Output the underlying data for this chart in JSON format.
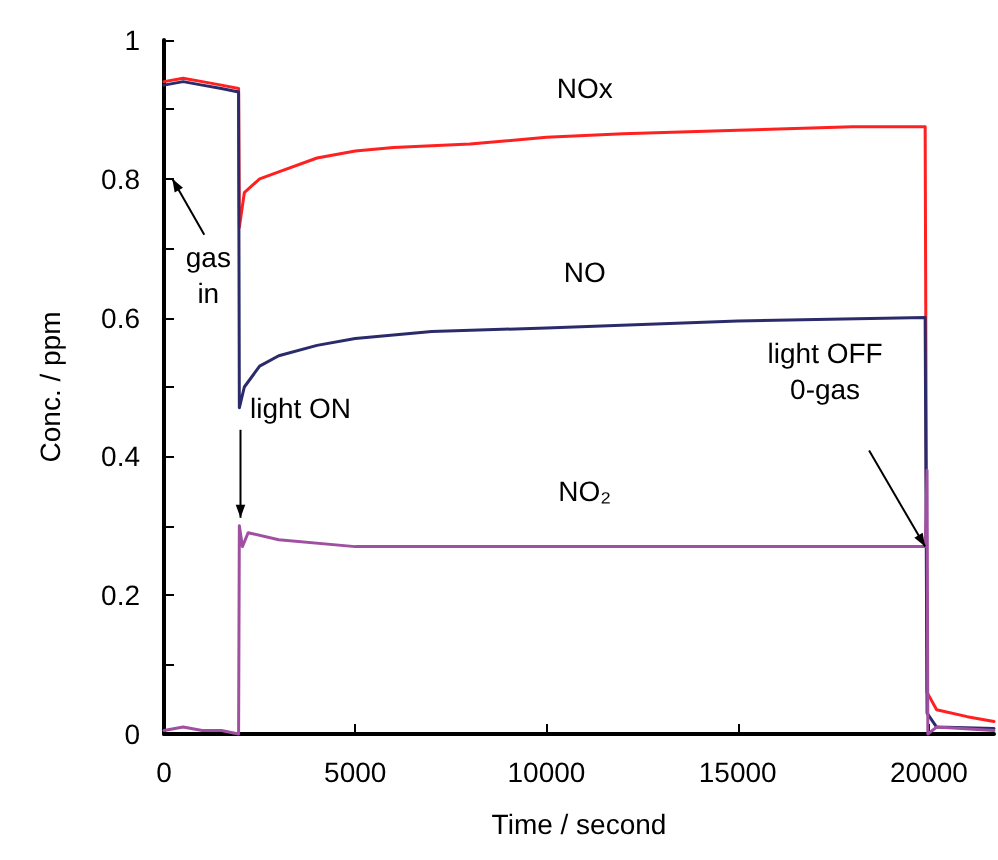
{
  "chart_data": {
    "type": "line",
    "xlabel": "Time / second",
    "ylabel": "Conc. / ppm",
    "xlim": [
      0,
      21700
    ],
    "xticks": [
      0,
      5000,
      10000,
      15000,
      20000
    ],
    "ylim": [
      0,
      1
    ],
    "yticks": [
      0,
      {
        "value": 0.1,
        "label": null
      },
      0.2,
      {
        "value": 0.3,
        "label": null
      },
      0.4,
      {
        "value": 0.5,
        "label": null
      },
      0.6,
      {
        "value": 0.7,
        "label": null
      },
      0.8,
      {
        "value": 0.9,
        "label": null
      },
      1
    ],
    "grid": false,
    "legend": false,
    "marker": "none",
    "line_style": "solid",
    "series": [
      {
        "name": "NOx",
        "color": "#ff2020",
        "x": [
          0,
          500,
          1000,
          1500,
          1950,
          1970,
          2100,
          2500,
          3000,
          4000,
          5000,
          6000,
          8000,
          10000,
          12000,
          15000,
          18000,
          19900,
          19950,
          20200,
          21000,
          21700
        ],
        "values": [
          0.94,
          0.945,
          0.94,
          0.935,
          0.93,
          0.73,
          0.78,
          0.8,
          0.81,
          0.83,
          0.84,
          0.845,
          0.85,
          0.86,
          0.865,
          0.87,
          0.875,
          0.875,
          0.06,
          0.035,
          0.025,
          0.018
        ]
      },
      {
        "name": "NO",
        "color": "#2b2b6b",
        "x": [
          0,
          500,
          1000,
          1500,
          1950,
          1970,
          2100,
          2500,
          3000,
          4000,
          5000,
          7000,
          10000,
          15000,
          19900,
          19950,
          20200,
          21700
        ],
        "values": [
          0.935,
          0.94,
          0.935,
          0.93,
          0.925,
          0.47,
          0.5,
          0.53,
          0.545,
          0.56,
          0.57,
          0.58,
          0.585,
          0.595,
          0.6,
          0.03,
          0.01,
          0.008
        ]
      },
      {
        "name": "NO₂",
        "color": "#a050a0",
        "x": [
          0,
          500,
          1000,
          1500,
          1950,
          1970,
          2050,
          2200,
          3000,
          5000,
          10000,
          15000,
          19900,
          19950,
          19970,
          20200,
          21700
        ],
        "values": [
          0.005,
          0.01,
          0.005,
          0.005,
          0.0,
          0.3,
          0.27,
          0.29,
          0.28,
          0.27,
          0.27,
          0.27,
          0.27,
          0.38,
          0.0,
          0.01,
          0.005
        ]
      }
    ],
    "annotations": [
      "gas in",
      {
        "text": "light ON",
        "x": 2000,
        "y": 0.3
      },
      "light OFF\n0-gas"
    ]
  }
}
